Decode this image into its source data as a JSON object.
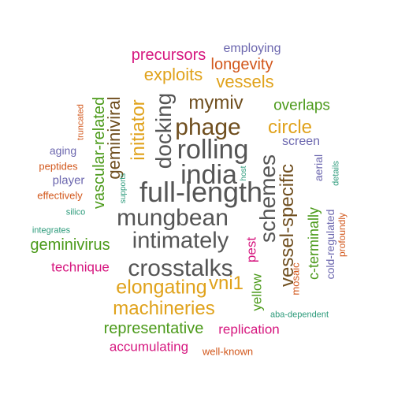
{
  "colors": {
    "gray": "#555555",
    "olive": "#6f4e1e",
    "green": "#4b9a1a",
    "orange": "#e0a21b",
    "magenta": "#d6177f",
    "purple": "#6b66ae",
    "rust": "#d2571b",
    "teal": "#2b9a7a"
  },
  "words": [
    {
      "text": "precursors",
      "color": "magenta",
      "orientation": "horizontal"
    },
    {
      "text": "employing",
      "color": "purple",
      "orientation": "horizontal"
    },
    {
      "text": "longevity",
      "color": "rust",
      "orientation": "horizontal"
    },
    {
      "text": "exploits",
      "color": "orange",
      "orientation": "horizontal"
    },
    {
      "text": "vessels",
      "color": "orange",
      "orientation": "horizontal"
    },
    {
      "text": "mymiv",
      "color": "olive",
      "orientation": "horizontal"
    },
    {
      "text": "overlaps",
      "color": "green",
      "orientation": "horizontal"
    },
    {
      "text": "phage",
      "color": "olive",
      "orientation": "horizontal"
    },
    {
      "text": "circle",
      "color": "orange",
      "orientation": "horizontal"
    },
    {
      "text": "screen",
      "color": "purple",
      "orientation": "horizontal"
    },
    {
      "text": "rolling",
      "color": "gray",
      "orientation": "horizontal"
    },
    {
      "text": "india",
      "color": "gray",
      "orientation": "horizontal"
    },
    {
      "text": "full-length",
      "color": "gray",
      "orientation": "horizontal"
    },
    {
      "text": "mungbean",
      "color": "gray",
      "orientation": "horizontal"
    },
    {
      "text": "intimately",
      "color": "gray",
      "orientation": "horizontal"
    },
    {
      "text": "crosstalks",
      "color": "gray",
      "orientation": "horizontal"
    },
    {
      "text": "elongating",
      "color": "orange",
      "orientation": "horizontal"
    },
    {
      "text": "vni1",
      "color": "orange",
      "orientation": "horizontal"
    },
    {
      "text": "machineries",
      "color": "orange",
      "orientation": "horizontal"
    },
    {
      "text": "representative",
      "color": "green",
      "orientation": "horizontal"
    },
    {
      "text": "replication",
      "color": "magenta",
      "orientation": "horizontal"
    },
    {
      "text": "accumulating",
      "color": "magenta",
      "orientation": "horizontal"
    },
    {
      "text": "well-known",
      "color": "rust",
      "orientation": "horizontal"
    },
    {
      "text": "aba-dependent",
      "color": "teal",
      "orientation": "horizontal"
    },
    {
      "text": "technique",
      "color": "magenta",
      "orientation": "horizontal"
    },
    {
      "text": "geminivirus",
      "color": "green",
      "orientation": "horizontal"
    },
    {
      "text": "integrates",
      "color": "teal",
      "orientation": "horizontal"
    },
    {
      "text": "silico",
      "color": "teal",
      "orientation": "horizontal"
    },
    {
      "text": "effectively",
      "color": "rust",
      "orientation": "horizontal"
    },
    {
      "text": "player",
      "color": "purple",
      "orientation": "horizontal"
    },
    {
      "text": "peptides",
      "color": "rust",
      "orientation": "horizontal"
    },
    {
      "text": "aging",
      "color": "purple",
      "orientation": "horizontal"
    },
    {
      "text": "truncated",
      "color": "rust",
      "orientation": "vertical"
    },
    {
      "text": "vascular-related",
      "color": "green",
      "orientation": "vertical"
    },
    {
      "text": "geminiviral",
      "color": "olive",
      "orientation": "vertical"
    },
    {
      "text": "initiator",
      "color": "orange",
      "orientation": "vertical"
    },
    {
      "text": "docking",
      "color": "gray",
      "orientation": "vertical"
    },
    {
      "text": "supports",
      "color": "teal",
      "orientation": "vertical"
    },
    {
      "text": "host",
      "color": "teal",
      "orientation": "vertical"
    },
    {
      "text": "schemes",
      "color": "gray",
      "orientation": "vertical"
    },
    {
      "text": "vessel-specific",
      "color": "olive",
      "orientation": "vertical"
    },
    {
      "text": "aerial",
      "color": "purple",
      "orientation": "vertical"
    },
    {
      "text": "details",
      "color": "teal",
      "orientation": "vertical"
    },
    {
      "text": "c-terminally",
      "color": "green",
      "orientation": "vertical"
    },
    {
      "text": "cold-regulated",
      "color": "purple",
      "orientation": "vertical"
    },
    {
      "text": "profoundly",
      "color": "rust",
      "orientation": "vertical"
    },
    {
      "text": "mosaic",
      "color": "rust",
      "orientation": "vertical"
    },
    {
      "text": "pest",
      "color": "magenta",
      "orientation": "vertical"
    },
    {
      "text": "yellow",
      "color": "green",
      "orientation": "vertical"
    }
  ]
}
